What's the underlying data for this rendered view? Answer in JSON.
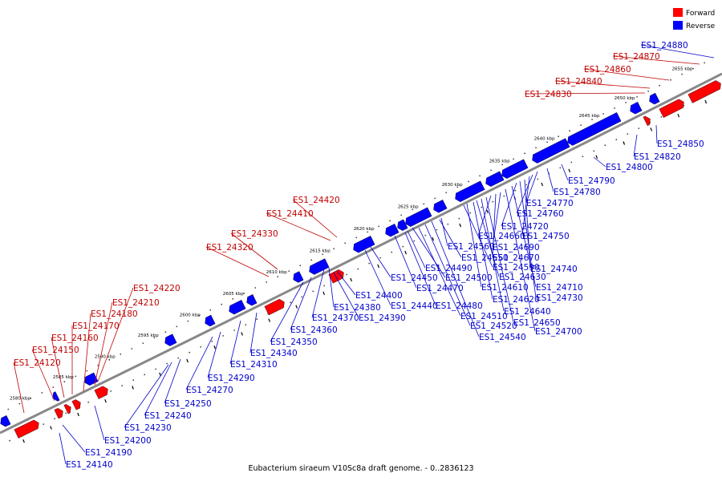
{
  "caption": "Eubacterium siraeum V10Sc8a draft genome. - 0..2836123",
  "legend": [
    {
      "label": "Forward",
      "color": "#ff0000"
    },
    {
      "label": "Reverse",
      "color": "#0000ff"
    }
  ],
  "colors": {
    "forward": "#ff0000",
    "reverse": "#0000ff",
    "backbone": "#888888"
  },
  "scale_labels": [
    "2580 kbp",
    "2585 kbp",
    "2590 kbp",
    "2595 kbp",
    "2600 kbp",
    "2605 kbp",
    "2610 kbp",
    "2615 kbp",
    "2620 kbp",
    "2625 kbp",
    "2630 kbp",
    "2635 kbp",
    "2640 kbp",
    "2645 kbp",
    "2650 kbp",
    "2655 kbp"
  ],
  "forward_genes": [
    "ES1_24120",
    "ES1_24150",
    "ES1_24160",
    "ES1_24170",
    "ES1_24180",
    "ES1_24210",
    "ES1_24220",
    "ES1_24320",
    "ES1_24330",
    "ES1_24410",
    "ES1_24420",
    "ES1_24830",
    "ES1_24840",
    "ES1_24860",
    "ES1_24870"
  ],
  "reverse_genes": [
    "ES1_24140",
    "ES1_24190",
    "ES1_24200",
    "ES1_24230",
    "ES1_24240",
    "ES1_24250",
    "ES1_24270",
    "ES1_24290",
    "ES1_24310",
    "ES1_24340",
    "ES1_24350",
    "ES1_24360",
    "ES1_24370",
    "ES1_24380",
    "ES1_24390",
    "ES1_24400",
    "ES1_24440",
    "ES1_24450",
    "ES1_24470",
    "ES1_24480",
    "ES1_24490",
    "ES1_24500",
    "ES1_24510",
    "ES1_24520",
    "ES1_24540",
    "ES1_24550",
    "ES1_24560",
    "ES1_24590",
    "ES1_24610",
    "ES1_24620",
    "ES1_24630",
    "ES1_24640",
    "ES1_24650",
    "ES1_24660",
    "ES1_24670",
    "ES1_24690",
    "ES1_24700",
    "ES1_24710",
    "ES1_24720",
    "ES1_24730",
    "ES1_24740",
    "ES1_24750",
    "ES1_24760",
    "ES1_24770",
    "ES1_24780",
    "ES1_24790",
    "ES1_24800",
    "ES1_24820",
    "ES1_24850",
    "ES1_24880"
  ]
}
